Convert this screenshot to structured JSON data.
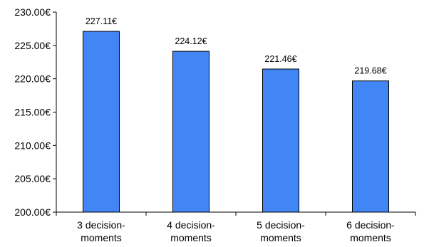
{
  "chart_data": {
    "type": "bar",
    "title": "",
    "xlabel": "",
    "ylabel": "",
    "categories": [
      [
        "3 decision-",
        "moments"
      ],
      [
        "4 decision-",
        "moments"
      ],
      [
        "5 decision-",
        "moments"
      ],
      [
        "6 decision-",
        "moments"
      ]
    ],
    "values": [
      227.11,
      224.12,
      221.46,
      219.68
    ],
    "data_labels": [
      "227.11€",
      "224.12€",
      "221.46€",
      "219.68€"
    ],
    "ylim": [
      200,
      230
    ],
    "y_ticks": [
      200,
      205,
      210,
      215,
      220,
      225,
      230
    ],
    "y_tick_labels": [
      "200.00€",
      "205.00€",
      "210.00€",
      "215.00€",
      "220.00€",
      "225.00€",
      "230.00€"
    ],
    "grid": false,
    "legend": "none",
    "colors": {
      "bar_fill": "#4285F4",
      "bar_stroke": "#000000",
      "axis": "#000000"
    }
  }
}
